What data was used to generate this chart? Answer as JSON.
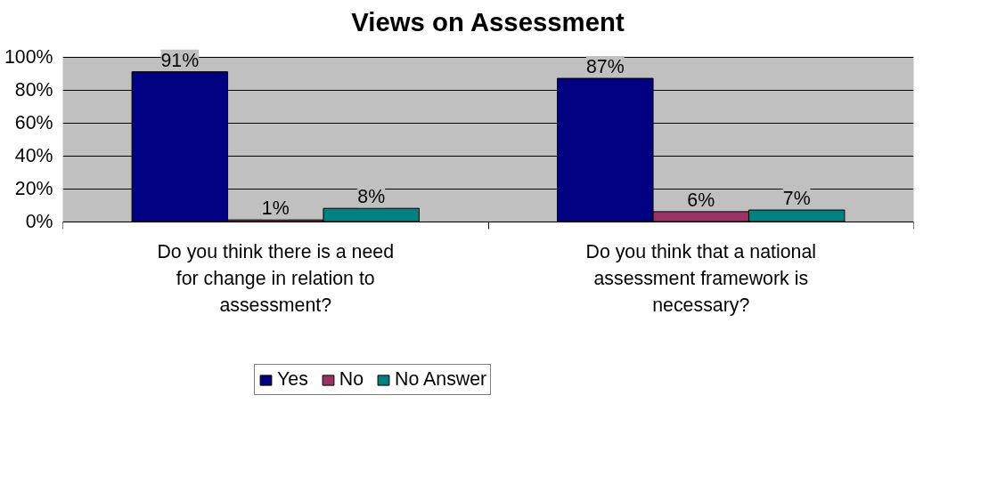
{
  "chart_data": {
    "type": "bar",
    "title": "Views on Assessment",
    "categories": [
      "Do you think there is a need for change in relation to assessment?",
      "Do you think that a national assessment framework is necessary?"
    ],
    "series": [
      {
        "name": "Yes",
        "color": "#000080",
        "values": [
          91,
          87
        ],
        "value_labels": [
          "91%",
          "87%"
        ]
      },
      {
        "name": "No",
        "color": "#993366",
        "values": [
          1,
          6
        ],
        "value_labels": [
          "1%",
          "6%"
        ]
      },
      {
        "name": "No Answer",
        "color": "#008080",
        "values": [
          8,
          7
        ],
        "value_labels": [
          "8%",
          "7%"
        ]
      }
    ],
    "ylim": [
      0,
      100
    ],
    "yticks": [
      {
        "value": 0,
        "label": "0%"
      },
      {
        "value": 20,
        "label": "20%"
      },
      {
        "value": 40,
        "label": "40%"
      },
      {
        "value": 60,
        "label": "60%"
      },
      {
        "value": 80,
        "label": "80%"
      },
      {
        "value": 100,
        "label": "100%"
      }
    ],
    "grid": "y",
    "legend": "bottom"
  }
}
